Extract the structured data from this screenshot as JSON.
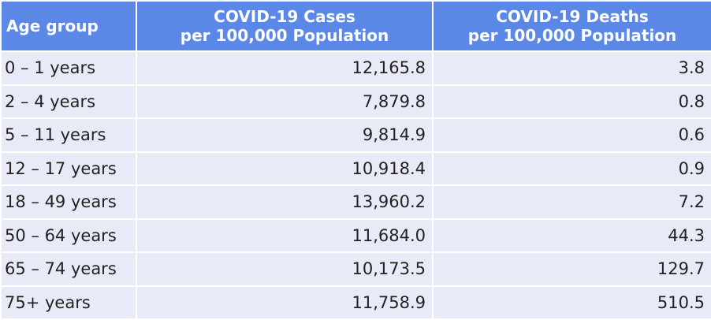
{
  "table": {
    "header": [
      [
        "Age group"
      ],
      [
        "COVID-19 Cases",
        "per 100,000 Population"
      ],
      [
        "COVID-19 Deaths",
        "per 100,000 Population"
      ]
    ],
    "rows": [
      [
        "0 – 1 years",
        "12,165.8",
        "3.8"
      ],
      [
        "2 – 4 years",
        "7,879.8",
        "0.8"
      ],
      [
        "5 – 11 years",
        "9,814.9",
        "0.6"
      ],
      [
        "12 – 17 years",
        "10,918.4",
        "0.9"
      ],
      [
        "18 – 49 years",
        "13,960.2",
        "7.2"
      ],
      [
        "50 – 64 years",
        "11,684.0",
        "44.3"
      ],
      [
        "65 – 74 years",
        "10,173.5",
        "129.7"
      ],
      [
        "75+ years",
        "11,758.9",
        "510.5"
      ]
    ]
  }
}
